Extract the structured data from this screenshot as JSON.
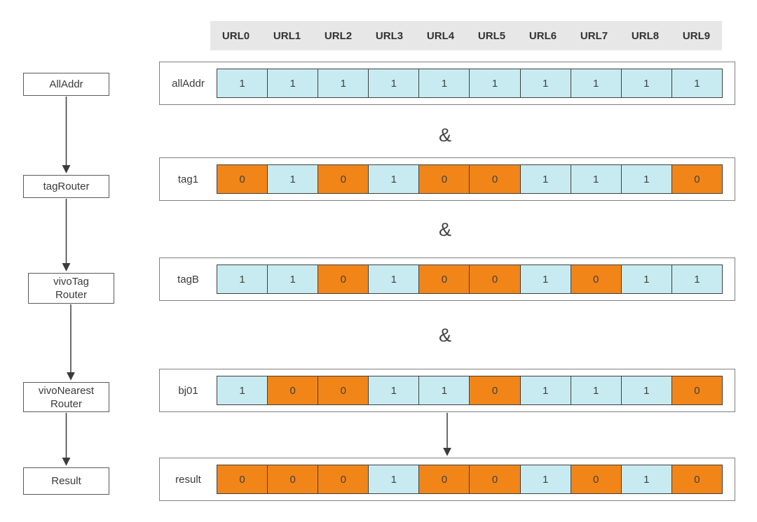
{
  "flowchart": {
    "nodes": [
      {
        "id": "alladdr",
        "label": "AllAddr"
      },
      {
        "id": "tagrouter",
        "label": "tagRouter"
      },
      {
        "id": "vivotagrouter",
        "label": "vivoTag\nRouter"
      },
      {
        "id": "vivonearestrouter",
        "label": "vivoNearest\nRouter"
      },
      {
        "id": "result",
        "label": "Result"
      }
    ]
  },
  "bitmap": {
    "columns": [
      "URL0",
      "URL1",
      "URL2",
      "URL3",
      "URL4",
      "URL5",
      "URL6",
      "URL7",
      "URL8",
      "URL9"
    ],
    "rows": [
      {
        "label": "allAddr",
        "values": [
          1,
          1,
          1,
          1,
          1,
          1,
          1,
          1,
          1,
          1
        ]
      },
      {
        "label": "tag1",
        "values": [
          0,
          1,
          0,
          1,
          0,
          0,
          1,
          1,
          1,
          0
        ]
      },
      {
        "label": "tagB",
        "values": [
          1,
          1,
          0,
          1,
          0,
          0,
          1,
          0,
          1,
          1
        ]
      },
      {
        "label": "bj01",
        "values": [
          1,
          0,
          0,
          1,
          1,
          0,
          1,
          1,
          1,
          0
        ]
      },
      {
        "label": "result",
        "values": [
          0,
          0,
          0,
          1,
          0,
          0,
          1,
          0,
          1,
          0
        ]
      }
    ],
    "operator": "&"
  },
  "colors": {
    "one_fill": "#c7ebf0",
    "zero_fill": "#f28517",
    "cell_border": "#404040",
    "box_border": "#808080",
    "header_bg": "#e7e7e7",
    "text": "#3b3b3b",
    "arrow": "#3b3b3b"
  }
}
